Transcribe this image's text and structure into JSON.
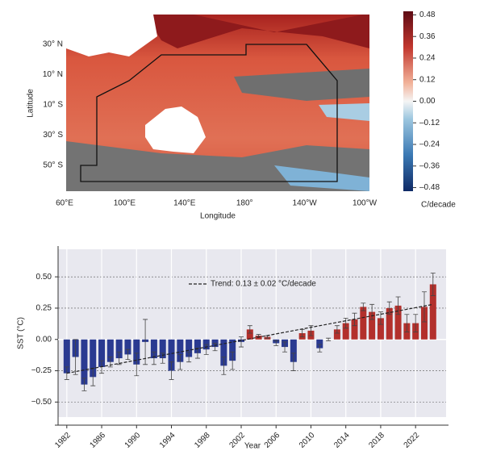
{
  "map": {
    "xlabel": "Longitude",
    "ylabel": "Latitude",
    "lon_labels": [
      "60°E",
      "100°E",
      "140°E",
      "180°",
      "140°W",
      "100°W"
    ],
    "lat_labels": [
      "30° N",
      "10° N",
      "10° S",
      "30° S",
      "50° S"
    ],
    "colorbar": {
      "label": "C/decade",
      "clim": [
        -0.5,
        0.5
      ],
      "ticks": [
        0.48,
        0.36,
        0.24,
        0.12,
        {
          "value": 0,
          "label": "0.00"
        },
        {
          "value": -0.12,
          "label": "–0.12"
        },
        {
          "value": -0.24,
          "label": "–0.24"
        },
        {
          "value": -0.36,
          "label": "–0.36"
        },
        {
          "value": -0.48,
          "label": "–0.48"
        }
      ]
    }
  },
  "chart_data": {
    "type": "bar",
    "xlabel": "Year",
    "ylabel": "SST (°C)",
    "x": [
      1982,
      1983,
      1984,
      1985,
      1986,
      1987,
      1988,
      1989,
      1990,
      1991,
      1992,
      1993,
      1994,
      1995,
      1996,
      1997,
      1998,
      1999,
      2000,
      2001,
      2002,
      2003,
      2004,
      2005,
      2006,
      2007,
      2008,
      2009,
      2010,
      2011,
      2012,
      2013,
      2014,
      2015,
      2016,
      2017,
      2018,
      2019,
      2020,
      2021,
      2022,
      2023,
      2024
    ],
    "values": [
      -0.27,
      -0.14,
      -0.36,
      -0.3,
      -0.22,
      -0.18,
      -0.15,
      -0.12,
      -0.2,
      -0.02,
      -0.15,
      -0.15,
      -0.25,
      -0.18,
      -0.14,
      -0.11,
      -0.08,
      -0.06,
      -0.21,
      -0.17,
      -0.02,
      0.08,
      0.03,
      0.02,
      -0.03,
      -0.06,
      -0.18,
      0.05,
      0.07,
      -0.07,
      0.0,
      0.08,
      0.13,
      0.16,
      0.26,
      0.22,
      0.17,
      0.25,
      0.27,
      0.13,
      0.13,
      0.26,
      0.44
    ],
    "errors": [
      0.05,
      0.14,
      0.05,
      0.07,
      0.05,
      0.04,
      0.05,
      0.04,
      0.09,
      0.18,
      0.05,
      0.04,
      0.07,
      0.06,
      0.04,
      0.04,
      0.04,
      0.03,
      0.07,
      0.07,
      0.04,
      0.03,
      0.01,
      0.01,
      0.02,
      0.04,
      0.07,
      0.03,
      0.04,
      0.03,
      0.01,
      0.03,
      0.04,
      0.05,
      0.03,
      0.06,
      0.05,
      0.05,
      0.07,
      0.07,
      0.07,
      0.12,
      0.09
    ],
    "color_positive": "#b3302c",
    "color_negative": "#2a3a91",
    "trend": {
      "label": "Trend: 0.13 ± 0.02 °C/decade",
      "x": [
        1982,
        2024
      ],
      "y": [
        -0.27,
        0.28
      ]
    },
    "xlim": [
      1981,
      2025.5
    ],
    "xticks": [
      1982,
      1986,
      1990,
      1994,
      1998,
      2002,
      2006,
      2010,
      2014,
      2018,
      2022
    ],
    "ylim": [
      -0.62,
      0.72
    ],
    "yticks": [
      {
        "value": 0.5,
        "label": "0.50"
      },
      0.25,
      {
        "value": 0,
        "label": "0.00"
      },
      {
        "value": -0.25,
        "label": "−0.25"
      },
      {
        "value": -0.5,
        "label": "−0.50"
      }
    ],
    "grid": true
  }
}
